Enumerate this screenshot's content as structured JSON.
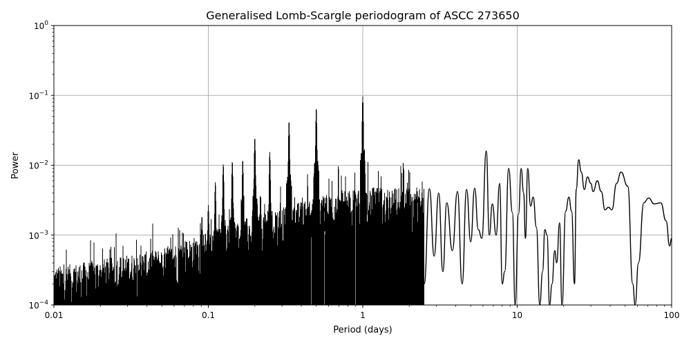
{
  "chart_data": {
    "type": "line",
    "title": "Generalised Lomb-Scargle periodogram of ASCC 273650",
    "xlabel": "Period (days)",
    "ylabel": "Power",
    "xscale": "log",
    "yscale": "log",
    "xlim": [
      0.01,
      100
    ],
    "ylim": [
      0.0001,
      1
    ],
    "grid": true,
    "legend": null,
    "x_ticks": [
      {
        "value": 0.01,
        "label": "0.01"
      },
      {
        "value": 0.1,
        "label": "0.1"
      },
      {
        "value": 1,
        "label": "1"
      },
      {
        "value": 10,
        "label": "10"
      },
      {
        "value": 100,
        "label": "100"
      }
    ],
    "y_ticks": [
      {
        "value": 0.0001,
        "base": "10",
        "exp": "−4"
      },
      {
        "value": 0.001,
        "base": "10",
        "exp": "−3"
      },
      {
        "value": 0.01,
        "base": "10",
        "exp": "−2"
      },
      {
        "value": 0.1,
        "base": "10",
        "exp": "−1"
      },
      {
        "value": 1,
        "base": "10",
        "exp": "0"
      }
    ],
    "line_color": "#000000",
    "grid_color": "#b0b0b0",
    "noise_floor": {
      "description": "dense noise band rising from ~2e-4 at 0.01 d to ~3e-3 near 1 d",
      "points": [
        [
          0.01,
          0.00022
        ],
        [
          0.02,
          0.00028
        ],
        [
          0.05,
          0.0004
        ],
        [
          0.1,
          0.0007
        ],
        [
          0.2,
          0.0012
        ],
        [
          0.5,
          0.0022
        ],
        [
          1.0,
          0.003
        ],
        [
          2.0,
          0.003
        ]
      ]
    },
    "peaks": [
      {
        "period": 0.0909,
        "power": 0.0019
      },
      {
        "period": 0.1,
        "power": 0.0027
      },
      {
        "period": 0.111,
        "power": 0.0058
      },
      {
        "period": 0.125,
        "power": 0.0105
      },
      {
        "period": 0.143,
        "power": 0.0115
      },
      {
        "period": 0.167,
        "power": 0.012
      },
      {
        "period": 0.2,
        "power": 0.025
      },
      {
        "period": 0.25,
        "power": 0.0155
      },
      {
        "period": 0.333,
        "power": 0.043
      },
      {
        "period": 0.5,
        "power": 0.066
      },
      {
        "period": 1.0,
        "power": 0.097
      },
      {
        "period": 6.3,
        "power": 0.016
      },
      {
        "period": 25.0,
        "power": 0.012
      },
      {
        "period": 47.0,
        "power": 0.008
      }
    ],
    "long_period_curve": [
      [
        2.5,
        0.0002
      ],
      [
        2.7,
        0.0046
      ],
      [
        2.9,
        0.0005
      ],
      [
        3.1,
        0.004
      ],
      [
        3.3,
        0.0003
      ],
      [
        3.5,
        0.0029
      ],
      [
        3.8,
        0.0006
      ],
      [
        4.1,
        0.0042
      ],
      [
        4.4,
        0.0002
      ],
      [
        4.7,
        0.0045
      ],
      [
        5.0,
        0.0008
      ],
      [
        5.3,
        0.0047
      ],
      [
        5.6,
        0.0012
      ],
      [
        5.9,
        0.0009
      ],
      [
        6.3,
        0.016
      ],
      [
        6.6,
        0.001
      ],
      [
        6.9,
        0.0028
      ],
      [
        7.3,
        0.001
      ],
      [
        7.7,
        0.0055
      ],
      [
        8.0,
        0.0002
      ],
      [
        8.3,
        0.0003
      ],
      [
        8.8,
        0.009
      ],
      [
        9.3,
        0.0021
      ],
      [
        9.7,
        0.0001
      ],
      [
        10.2,
        0.002
      ],
      [
        10.6,
        0.009
      ],
      [
        11.0,
        0.004
      ],
      [
        11.3,
        0.0009
      ],
      [
        11.7,
        0.009
      ],
      [
        12.2,
        0.0026
      ],
      [
        12.7,
        0.0035
      ],
      [
        13.3,
        0.0013
      ],
      [
        14.0,
        1e-05
      ],
      [
        14.6,
        0.0003
      ],
      [
        15.1,
        0.0012
      ],
      [
        15.6,
        0.001
      ],
      [
        16.2,
        9e-05
      ],
      [
        16.8,
        0.0002
      ],
      [
        17.5,
        0.0006
      ],
      [
        18.0,
        0.0004
      ],
      [
        18.8,
        0.0015
      ],
      [
        19.5,
        0.0001
      ],
      [
        20.6,
        0.0022
      ],
      [
        21.6,
        0.0035
      ],
      [
        22.5,
        0.0022
      ],
      [
        23.5,
        0.0002
      ],
      [
        24.1,
        0.0045
      ],
      [
        25.0,
        0.012
      ],
      [
        26.0,
        0.008
      ],
      [
        27.2,
        0.0045
      ],
      [
        28.5,
        0.0068
      ],
      [
        30.0,
        0.0055
      ],
      [
        31.0,
        0.0042
      ],
      [
        33.0,
        0.006
      ],
      [
        35.0,
        0.0042
      ],
      [
        37.0,
        0.0023
      ],
      [
        39.0,
        0.0025
      ],
      [
        41.0,
        0.0023
      ],
      [
        44.0,
        0.0055
      ],
      [
        47.0,
        0.008
      ],
      [
        52.0,
        0.005
      ],
      [
        56.0,
        0.0002
      ],
      [
        58.0,
        5e-05
      ],
      [
        61.0,
        0.0004
      ],
      [
        66.0,
        0.0029
      ],
      [
        71.0,
        0.0034
      ],
      [
        77.0,
        0.0028
      ],
      [
        85.0,
        0.0029
      ],
      [
        92.0,
        0.0016
      ],
      [
        97.0,
        0.0007
      ],
      [
        100.0,
        0.0009
      ]
    ]
  }
}
